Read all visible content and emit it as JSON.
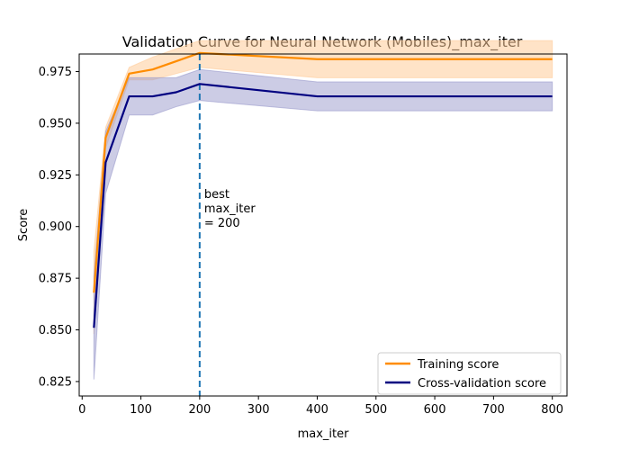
{
  "chart_data": {
    "type": "line",
    "title": "Validation Curve for Neural Network (Mobiles)_max_iter",
    "xlabel": "max_iter",
    "ylabel": "Score",
    "xlim": [
      -5,
      825
    ],
    "ylim": [
      0.818,
      0.9835
    ],
    "x_ticks": [
      0,
      100,
      200,
      300,
      400,
      500,
      600,
      700,
      800
    ],
    "y_ticks": [
      0.825,
      0.85,
      0.875,
      0.9,
      0.925,
      0.95,
      0.975
    ],
    "y_tick_labels": [
      "0.825",
      "0.850",
      "0.875",
      "0.900",
      "0.925",
      "0.950",
      "0.975"
    ],
    "grid": false,
    "legend_position": "lower-right",
    "x": [
      20,
      40,
      80,
      120,
      160,
      200,
      400,
      800
    ],
    "series": [
      {
        "name": "Training score",
        "color": "#ff8c00",
        "values": [
          0.868,
          0.943,
          0.974,
          0.976,
          0.98,
          0.984,
          0.981,
          0.981
        ],
        "band_low": [
          0.848,
          0.938,
          0.971,
          0.971,
          0.974,
          0.977,
          0.972,
          0.972
        ],
        "band_high": [
          0.888,
          0.948,
          0.977,
          0.982,
          0.986,
          0.99,
          0.99,
          0.99
        ],
        "band_color": "#ffcc99"
      },
      {
        "name": "Cross-validation score",
        "color": "#000080",
        "values": [
          0.851,
          0.931,
          0.963,
          0.963,
          0.965,
          0.969,
          0.963,
          0.963
        ],
        "band_low": [
          0.826,
          0.916,
          0.954,
          0.954,
          0.958,
          0.961,
          0.956,
          0.956
        ],
        "band_high": [
          0.876,
          0.946,
          0.972,
          0.972,
          0.972,
          0.976,
          0.97,
          0.97
        ],
        "band_color": "#9999cc"
      }
    ],
    "vline": {
      "x": 200,
      "color": "#1f77b4",
      "label_lines": [
        "best",
        "max_iter",
        "= 200"
      ]
    }
  }
}
